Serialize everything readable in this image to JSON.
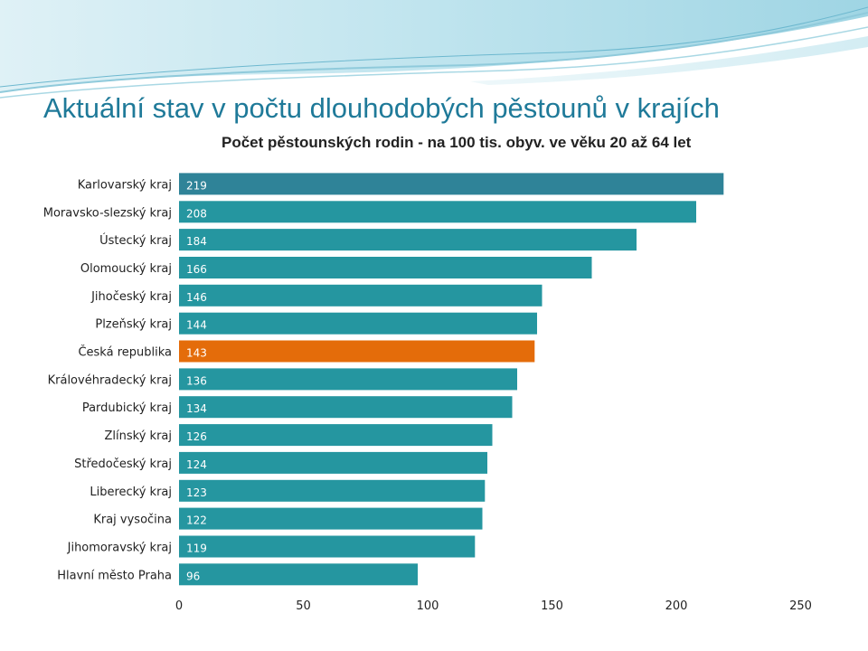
{
  "slide": {
    "title": "Aktuální stav v počtu dlouhodobých pěstounů v krajích",
    "title_color": "#1F7A99"
  },
  "chart_data": {
    "type": "bar",
    "orientation": "horizontal",
    "title": "Počet pěstounských rodin - na 100 tis. obyv. ve věku 20 až 64 let",
    "categories": [
      "Karlovarský kraj",
      "Moravsko-slezský kraj",
      "Ústecký kraj",
      "Olomoucký kraj",
      "Jihočeský kraj",
      "Plzeňský kraj",
      "Česká republika",
      "Královéhradecký kraj",
      "Pardubický kraj",
      "Zlínský kraj",
      "Středočeský kraj",
      "Liberecký kraj",
      "Kraj vysočina",
      "Jihomoravský kraj",
      "Hlavní město Praha"
    ],
    "values": [
      219,
      208,
      184,
      166,
      146,
      144,
      143,
      136,
      134,
      126,
      124,
      123,
      122,
      119,
      96
    ],
    "value_labels": [
      "219",
      "208",
      "184",
      "166",
      "146",
      "144",
      "143",
      "136",
      "134",
      "126",
      "124",
      "123",
      "122",
      "119",
      "96"
    ],
    "xlim": [
      0,
      250
    ],
    "xticks": [
      0,
      50,
      100,
      150,
      200,
      250
    ],
    "xtick_labels": [
      "0",
      "50",
      "100",
      "150",
      "200",
      "250"
    ],
    "grid": false,
    "legend": "none",
    "colors": {
      "bar": "#2596A0",
      "bar_top": "#2F8398",
      "highlight": "#E46C0A",
      "value_label": "#ffffff",
      "axis_text": "#222222"
    },
    "highlight_category": "Česká republika"
  }
}
